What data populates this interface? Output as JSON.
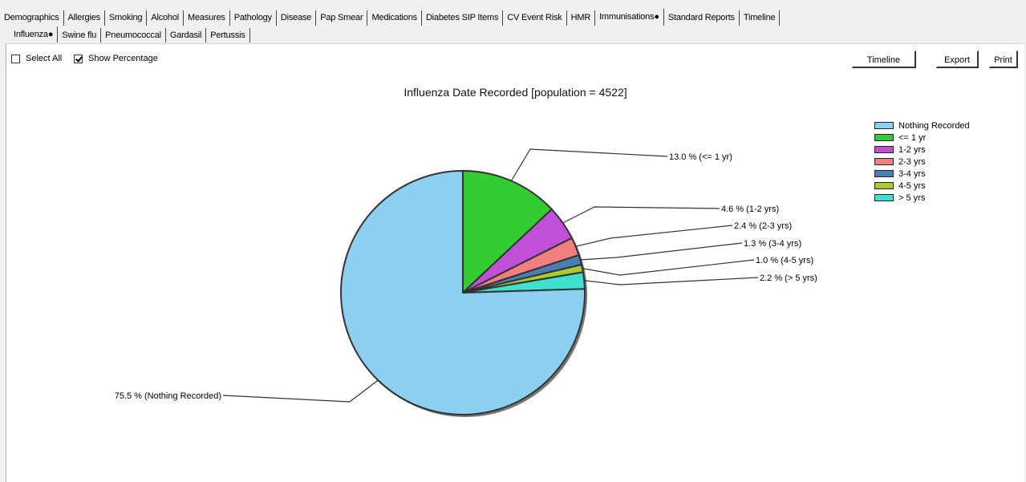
{
  "tabs": {
    "top": [
      {
        "label": "Demographics"
      },
      {
        "label": "Allergies"
      },
      {
        "label": "Smoking"
      },
      {
        "label": "Alcohol"
      },
      {
        "label": "Measures"
      },
      {
        "label": "Pathology"
      },
      {
        "label": "Disease"
      },
      {
        "label": "Pap Smear"
      },
      {
        "label": "Medications"
      },
      {
        "label": "Diabetes SIP Items"
      },
      {
        "label": "CV Event Risk"
      },
      {
        "label": "HMR"
      },
      {
        "label": "Immunisations●"
      },
      {
        "label": "Standard Reports"
      },
      {
        "label": "Timeline"
      }
    ],
    "sub": [
      {
        "label": "Influenza●"
      },
      {
        "label": "Swine flu"
      },
      {
        "label": "Pneumococcal"
      },
      {
        "label": "Gardasil"
      },
      {
        "label": "Pertussis"
      }
    ]
  },
  "options": {
    "select_all_label": "Select All",
    "show_percentage_label": "Show Percentage",
    "show_percentage_checked": true,
    "select_all_checked": false
  },
  "toolbar": {
    "timeline_label": "Timeline",
    "export_label": "Export",
    "print_label": "Print"
  },
  "chart_data": {
    "type": "pie",
    "title": "Influenza Date Recorded [population = 4522]",
    "slices": [
      {
        "name": "<= 1 yr",
        "value": 13.0,
        "label": "13.0 % (<= 1 yr)",
        "color": "#33cc33"
      },
      {
        "name": "1-2 yrs",
        "value": 4.6,
        "label": "4.6 % (1-2 yrs)",
        "color": "#c050d8"
      },
      {
        "name": "2-3 yrs",
        "value": 2.4,
        "label": "2.4 % (2-3 yrs)",
        "color": "#f08080"
      },
      {
        "name": "3-4 yrs",
        "value": 1.3,
        "label": "1.3 % (3-4 yrs)",
        "color": "#4a7fb5"
      },
      {
        "name": "4-5 yrs",
        "value": 1.0,
        "label": "1.0 % (4-5 yrs)",
        "color": "#a8cc30"
      },
      {
        "name": "> 5 yrs",
        "value": 2.2,
        "label": "2.2 % (> 5 yrs)",
        "color": "#40e0d0"
      },
      {
        "name": "Nothing Recorded",
        "value": 75.5,
        "label": "75.5 % (Nothing Recorded)",
        "color": "#8ccff0"
      }
    ],
    "legend": [
      {
        "name": "Nothing Recorded",
        "color": "#8ccff0"
      },
      {
        "name": "<= 1 yr",
        "color": "#33cc33"
      },
      {
        "name": "1-2 yrs",
        "color": "#c050d8"
      },
      {
        "name": "2-3 yrs",
        "color": "#f08080"
      },
      {
        "name": "3-4 yrs",
        "color": "#4a7fb5"
      },
      {
        "name": "4-5 yrs",
        "color": "#a8cc30"
      },
      {
        "name": "> 5 yrs",
        "color": "#40e0d0"
      }
    ],
    "legend_position": "top-right"
  }
}
